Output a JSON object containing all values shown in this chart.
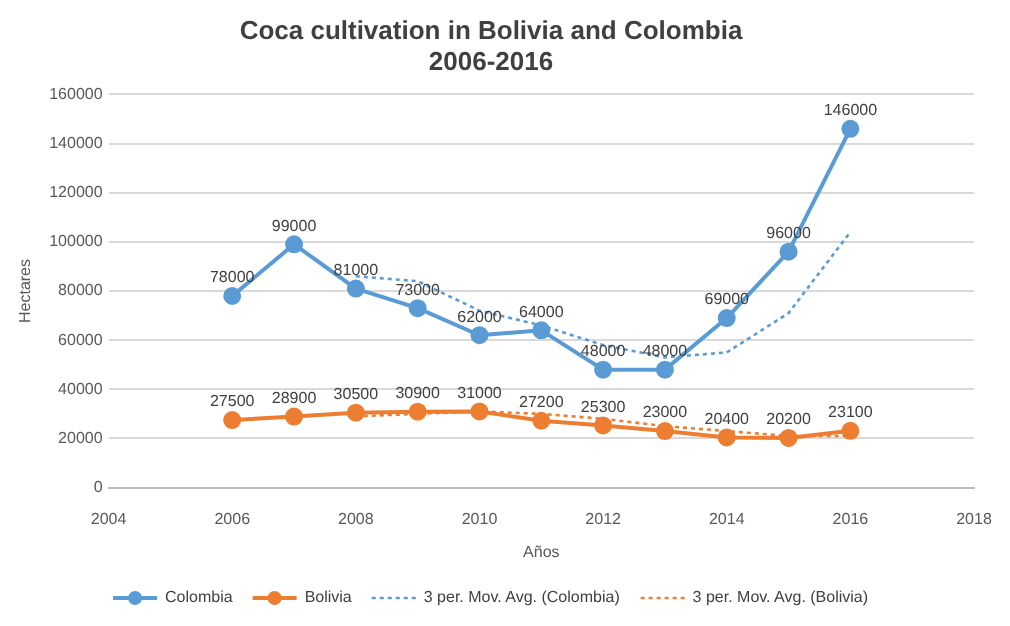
{
  "chart_data": {
    "type": "line",
    "title": "Coca cultivation in Bolivia and Colombia\n2006-2016",
    "xlabel": "Años",
    "ylabel": "Hectares",
    "xlim": [
      2004,
      2018
    ],
    "xticks": [
      2004,
      2006,
      2008,
      2010,
      2012,
      2014,
      2016,
      2018
    ],
    "ylim": [
      0,
      160000
    ],
    "yticks": [
      0,
      20000,
      40000,
      60000,
      80000,
      100000,
      120000,
      140000,
      160000
    ],
    "grid": "y",
    "legend": "bottom",
    "marker": "circle",
    "line_style": "solid",
    "series": [
      {
        "name": "Colombia",
        "color": "#5b9bd5",
        "x": [
          2006,
          2007,
          2008,
          2009,
          2010,
          2011,
          2012,
          2013,
          2014,
          2015,
          2016
        ],
        "values": [
          78000,
          99000,
          81000,
          73000,
          62000,
          64000,
          48000,
          48000,
          69000,
          96000,
          146000
        ],
        "value_labels": [
          "78000",
          "99000",
          "81000",
          "73000",
          "62000",
          "64000",
          "48000",
          "48000",
          "69000",
          "96000",
          "146000"
        ]
      },
      {
        "name": "Bolivia",
        "color": "#ed7d31",
        "x": [
          2006,
          2007,
          2008,
          2009,
          2010,
          2011,
          2012,
          2013,
          2014,
          2015,
          2016
        ],
        "values": [
          27500,
          28900,
          30500,
          30900,
          31000,
          27200,
          25300,
          23000,
          20400,
          20200,
          23100
        ],
        "value_labels": [
          "27500",
          "28900",
          "30500",
          "30900",
          "31000",
          "27200",
          "25300",
          "23000",
          "20400",
          "20200",
          "23100"
        ]
      },
      {
        "name": "3 per. Mov. Avg. (Colombia)",
        "color": "#5b9bd5",
        "line_style": "dotted",
        "marker": "none",
        "x": [
          2008,
          2009,
          2010,
          2011,
          2012,
          2013,
          2014,
          2015,
          2016
        ],
        "values": [
          86000,
          84000,
          72000,
          66000,
          58000,
          53000,
          55000,
          71000,
          104000
        ]
      },
      {
        "name": "3 per. Mov. Avg. (Bolivia)",
        "color": "#ed7d31",
        "line_style": "dotted",
        "marker": "none",
        "x": [
          2008,
          2009,
          2010,
          2011,
          2012,
          2013,
          2014,
          2015,
          2016
        ],
        "values": [
          29000,
          30000,
          31000,
          30000,
          28000,
          25000,
          23000,
          21000,
          21000
        ]
      }
    ]
  }
}
